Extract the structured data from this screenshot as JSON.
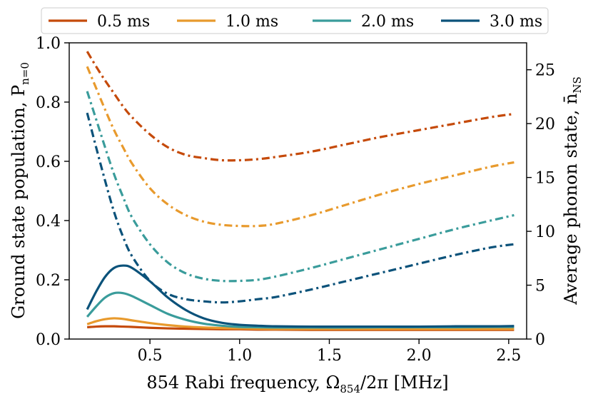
{
  "chart_data": {
    "type": "line",
    "xlabel": "854 Rabi frequency, Ω",
    "xlabel_sub": "854",
    "xlabel_tail": "/2π [MHz]",
    "ylabel_left": "Ground state population, P",
    "ylabel_left_sub": "n=0",
    "ylabel_right": "Average phonon state, n̄",
    "ylabel_right_sub": "NS",
    "xlim": [
      0.05,
      2.6
    ],
    "ylim_left": [
      0.0,
      1.0
    ],
    "ylim_right": [
      0,
      27.5
    ],
    "x_ticks": [
      "0.5",
      "1.0",
      "1.5",
      "2.0",
      "2.5"
    ],
    "x_tick_values": [
      0.5,
      1.0,
      1.5,
      2.0,
      2.5
    ],
    "y_left_ticks": [
      "0.0",
      "0.2",
      "0.4",
      "0.6",
      "0.8",
      "1.0"
    ],
    "y_left_tick_values": [
      0.0,
      0.2,
      0.4,
      0.6,
      0.8,
      1.0
    ],
    "y_right_ticks": [
      "0",
      "5",
      "10",
      "15",
      "20",
      "25"
    ],
    "y_right_tick_values": [
      0,
      5,
      10,
      15,
      20,
      25
    ],
    "legend_placement": "top (outside, above plot)",
    "grid": false,
    "x": [
      0.15,
      0.2,
      0.25,
      0.3,
      0.35,
      0.4,
      0.5,
      0.6,
      0.7,
      0.8,
      0.9,
      1.0,
      1.1,
      1.2,
      1.4,
      1.6,
      1.8,
      2.0,
      2.2,
      2.4,
      2.53
    ],
    "series": [
      {
        "name": "0.5 ms",
        "color": "#c54a0a",
        "population": [
          0.04,
          0.042,
          0.043,
          0.043,
          0.042,
          0.041,
          0.038,
          0.036,
          0.035,
          0.034,
          0.033,
          0.033,
          0.032,
          0.032,
          0.031,
          0.031,
          0.031,
          0.031,
          0.031,
          0.031,
          0.031
        ],
        "phonon": [
          26.7,
          25.3,
          24.0,
          22.8,
          21.6,
          20.6,
          19.0,
          17.8,
          17.1,
          16.8,
          16.6,
          16.6,
          16.7,
          16.9,
          17.4,
          18.1,
          18.8,
          19.4,
          20.0,
          20.6,
          20.9
        ]
      },
      {
        "name": "1.0 ms",
        "color": "#e89a2d",
        "population": [
          0.05,
          0.06,
          0.067,
          0.07,
          0.068,
          0.063,
          0.054,
          0.047,
          0.042,
          0.039,
          0.037,
          0.036,
          0.035,
          0.034,
          0.034,
          0.034,
          0.034,
          0.034,
          0.034,
          0.034,
          0.034
        ],
        "phonon": [
          25.3,
          23.3,
          21.3,
          19.4,
          17.8,
          16.3,
          14.0,
          12.5,
          11.5,
          10.9,
          10.6,
          10.5,
          10.5,
          10.7,
          11.5,
          12.5,
          13.5,
          14.4,
          15.2,
          16.0,
          16.4
        ]
      },
      {
        "name": "2.0 ms",
        "color": "#3a9c9b",
        "population": [
          0.075,
          0.11,
          0.14,
          0.155,
          0.155,
          0.145,
          0.115,
          0.085,
          0.065,
          0.052,
          0.045,
          0.041,
          0.04,
          0.039,
          0.039,
          0.039,
          0.04,
          0.04,
          0.04,
          0.041,
          0.041
        ],
        "phonon": [
          23.0,
          20.4,
          17.8,
          15.3,
          13.2,
          11.3,
          8.8,
          7.1,
          6.1,
          5.6,
          5.4,
          5.4,
          5.5,
          5.8,
          6.6,
          7.5,
          8.4,
          9.3,
          10.2,
          11.0,
          11.5
        ]
      },
      {
        "name": "3.0 ms",
        "color": "#0b527a",
        "population": [
          0.1,
          0.16,
          0.21,
          0.24,
          0.248,
          0.24,
          0.195,
          0.14,
          0.098,
          0.07,
          0.055,
          0.048,
          0.045,
          0.043,
          0.042,
          0.042,
          0.042,
          0.042,
          0.043,
          0.043,
          0.044
        ],
        "phonon": [
          21.0,
          17.8,
          14.7,
          11.8,
          9.5,
          7.7,
          5.4,
          4.2,
          3.7,
          3.5,
          3.4,
          3.5,
          3.7,
          3.9,
          4.6,
          5.4,
          6.2,
          7.0,
          7.8,
          8.5,
          8.8
        ]
      }
    ]
  }
}
